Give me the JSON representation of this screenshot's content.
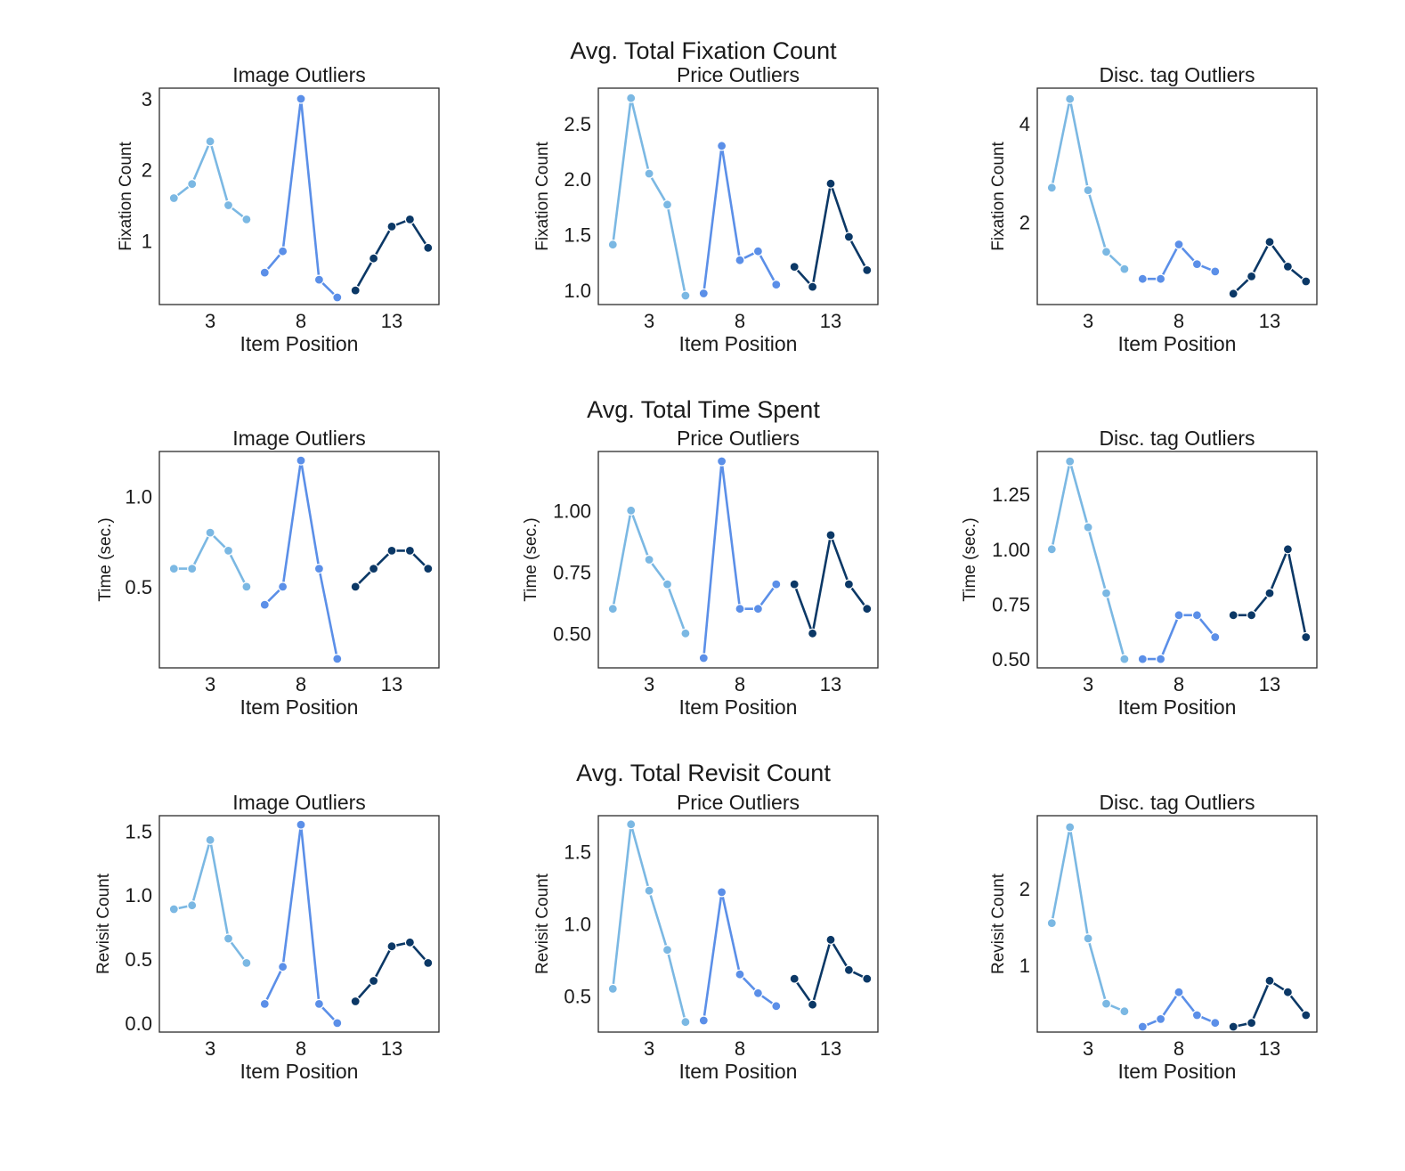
{
  "palette": {
    "segment_1": "#7BB8E3",
    "segment_2": "#5B8FE8",
    "segment_3": "#0B3866",
    "text": "#1a1a1a",
    "frame": "#2b2b2b"
  },
  "chart_data": [
    {
      "row_title": "Avg. Total Fixation Count",
      "panels": [
        {
          "type": "line",
          "title": "Image Outliers",
          "xlabel": "Item Position",
          "ylabel": "Fixation Count",
          "xlim": [
            0.2,
            15.6
          ],
          "ylim": [
            0.1,
            3.15
          ],
          "xticks": [
            3,
            8,
            13
          ],
          "yticks": [
            1,
            2,
            3
          ],
          "series": [
            {
              "name": "segment_1",
              "x": [
                1,
                2,
                3,
                4,
                5
              ],
              "y": [
                1.6,
                1.8,
                2.4,
                1.5,
                1.3
              ]
            },
            {
              "name": "segment_2",
              "x": [
                6,
                7,
                8,
                9,
                10
              ],
              "y": [
                0.55,
                0.85,
                3.0,
                0.45,
                0.2
              ]
            },
            {
              "name": "segment_3",
              "x": [
                11,
                12,
                13,
                14,
                15
              ],
              "y": [
                0.3,
                0.75,
                1.2,
                1.3,
                0.9
              ]
            }
          ]
        },
        {
          "type": "line",
          "title": "Price Outliers",
          "xlabel": "Item Position",
          "ylabel": "Fixation Count",
          "xlim": [
            0.2,
            15.6
          ],
          "ylim": [
            0.87,
            2.82
          ],
          "xticks": [
            3,
            8,
            13
          ],
          "yticks": [
            1.0,
            1.5,
            2.0,
            2.5
          ],
          "ytick_labels": [
            "1.0",
            "1.5",
            "2.0",
            "2.5"
          ],
          "series": [
            {
              "name": "segment_1",
              "x": [
                1,
                2,
                3,
                4,
                5
              ],
              "y": [
                1.41,
                2.73,
                2.05,
                1.77,
                0.95
              ]
            },
            {
              "name": "segment_2",
              "x": [
                6,
                7,
                8,
                9,
                10
              ],
              "y": [
                0.97,
                2.3,
                1.27,
                1.35,
                1.05
              ]
            },
            {
              "name": "segment_3",
              "x": [
                11,
                12,
                13,
                14,
                15
              ],
              "y": [
                1.21,
                1.03,
                1.96,
                1.48,
                1.18
              ]
            }
          ]
        },
        {
          "type": "line",
          "title": "Disc. tag Outliers",
          "xlabel": "Item Position",
          "ylabel": "Fixation Count",
          "xlim": [
            0.2,
            15.6
          ],
          "ylim": [
            0.33,
            4.72
          ],
          "xticks": [
            3,
            8,
            13
          ],
          "yticks": [
            2,
            4
          ],
          "series": [
            {
              "name": "segment_1",
              "x": [
                1,
                2,
                3,
                4,
                5
              ],
              "y": [
                2.7,
                4.5,
                2.65,
                1.4,
                1.05
              ]
            },
            {
              "name": "segment_2",
              "x": [
                6,
                7,
                8,
                9,
                10
              ],
              "y": [
                0.85,
                0.85,
                1.55,
                1.15,
                1.0
              ]
            },
            {
              "name": "segment_3",
              "x": [
                11,
                12,
                13,
                14,
                15
              ],
              "y": [
                0.55,
                0.9,
                1.6,
                1.1,
                0.8
              ]
            }
          ]
        }
      ]
    },
    {
      "row_title": "Avg. Total Time Spent",
      "panels": [
        {
          "type": "line",
          "title": "Image Outliers",
          "xlabel": "Item Position",
          "ylabel": "Time (sec.)",
          "xlim": [
            0.2,
            15.6
          ],
          "ylim": [
            0.05,
            1.25
          ],
          "xticks": [
            3,
            8,
            13
          ],
          "yticks": [
            0.5,
            1.0
          ],
          "ytick_labels": [
            "0.5",
            "1.0"
          ],
          "series": [
            {
              "name": "segment_1",
              "x": [
                1,
                2,
                3,
                4,
                5
              ],
              "y": [
                0.6,
                0.6,
                0.8,
                0.7,
                0.5
              ]
            },
            {
              "name": "segment_2",
              "x": [
                6,
                7,
                8,
                9,
                10
              ],
              "y": [
                0.4,
                0.5,
                1.2,
                0.6,
                0.1
              ]
            },
            {
              "name": "segment_3",
              "x": [
                11,
                12,
                13,
                14,
                15
              ],
              "y": [
                0.5,
                0.6,
                0.7,
                0.7,
                0.6
              ]
            }
          ]
        },
        {
          "type": "line",
          "title": "Price Outliers",
          "xlabel": "Item Position",
          "ylabel": "Time (sec.)",
          "xlim": [
            0.2,
            15.6
          ],
          "ylim": [
            0.36,
            1.24
          ],
          "xticks": [
            3,
            8,
            13
          ],
          "yticks": [
            0.5,
            0.75,
            1.0
          ],
          "ytick_labels": [
            "0.50",
            "0.75",
            "1.00"
          ],
          "series": [
            {
              "name": "segment_1",
              "x": [
                1,
                2,
                3,
                4,
                5
              ],
              "y": [
                0.6,
                1.0,
                0.8,
                0.7,
                0.5
              ]
            },
            {
              "name": "segment_2",
              "x": [
                6,
                7,
                8,
                9,
                10
              ],
              "y": [
                0.4,
                1.2,
                0.6,
                0.6,
                0.7
              ]
            },
            {
              "name": "segment_3",
              "x": [
                11,
                12,
                13,
                14,
                15
              ],
              "y": [
                0.7,
                0.5,
                0.9,
                0.7,
                0.6
              ]
            }
          ]
        },
        {
          "type": "line",
          "title": "Disc. tag Outliers",
          "xlabel": "Item Position",
          "ylabel": "Time (sec.)",
          "xlim": [
            0.2,
            15.6
          ],
          "ylim": [
            0.46,
            1.445
          ],
          "xticks": [
            3,
            8,
            13
          ],
          "yticks": [
            0.5,
            0.75,
            1.0,
            1.25
          ],
          "ytick_labels": [
            "0.50",
            "0.75",
            "1.00",
            "1.25"
          ],
          "series": [
            {
              "name": "segment_1",
              "x": [
                1,
                2,
                3,
                4,
                5
              ],
              "y": [
                1.0,
                1.4,
                1.1,
                0.8,
                0.5
              ]
            },
            {
              "name": "segment_2",
              "x": [
                6,
                7,
                8,
                9,
                10
              ],
              "y": [
                0.5,
                0.5,
                0.7,
                0.7,
                0.6
              ]
            },
            {
              "name": "segment_3",
              "x": [
                11,
                12,
                13,
                14,
                15
              ],
              "y": [
                0.7,
                0.7,
                0.8,
                1.0,
                0.6
              ]
            }
          ]
        }
      ]
    },
    {
      "row_title": "Avg. Total Revisit Count",
      "panels": [
        {
          "type": "line",
          "title": "Image Outliers",
          "xlabel": "Item Position",
          "ylabel": "Revisit Count",
          "xlim": [
            0.2,
            15.6
          ],
          "ylim": [
            -0.07,
            1.62
          ],
          "xticks": [
            3,
            8,
            13
          ],
          "yticks": [
            0.0,
            0.5,
            1.0,
            1.5
          ],
          "ytick_labels": [
            "0.0",
            "0.5",
            "1.0",
            "1.5"
          ],
          "series": [
            {
              "name": "segment_1",
              "x": [
                1,
                2,
                3,
                4,
                5
              ],
              "y": [
                0.89,
                0.92,
                1.43,
                0.66,
                0.47
              ]
            },
            {
              "name": "segment_2",
              "x": [
                6,
                7,
                8,
                9,
                10
              ],
              "y": [
                0.15,
                0.44,
                1.55,
                0.15,
                0.0
              ]
            },
            {
              "name": "segment_3",
              "x": [
                11,
                12,
                13,
                14,
                15
              ],
              "y": [
                0.17,
                0.33,
                0.6,
                0.63,
                0.47
              ]
            }
          ]
        },
        {
          "type": "line",
          "title": "Price Outliers",
          "xlabel": "Item Position",
          "ylabel": "Revisit Count",
          "xlim": [
            0.2,
            15.6
          ],
          "ylim": [
            0.25,
            1.75
          ],
          "xticks": [
            3,
            8,
            13
          ],
          "yticks": [
            0.5,
            1.0,
            1.5
          ],
          "ytick_labels": [
            "0.5",
            "1.0",
            "1.5"
          ],
          "series": [
            {
              "name": "segment_1",
              "x": [
                1,
                2,
                3,
                4,
                5
              ],
              "y": [
                0.55,
                1.69,
                1.23,
                0.82,
                0.32
              ]
            },
            {
              "name": "segment_2",
              "x": [
                6,
                7,
                8,
                9,
                10
              ],
              "y": [
                0.33,
                1.22,
                0.65,
                0.52,
                0.43
              ]
            },
            {
              "name": "segment_3",
              "x": [
                11,
                12,
                13,
                14,
                15
              ],
              "y": [
                0.62,
                0.44,
                0.89,
                0.68,
                0.62
              ]
            }
          ]
        },
        {
          "type": "line",
          "title": "Disc. tag Outliers",
          "xlabel": "Item Position",
          "ylabel": "Revisit Count",
          "xlim": [
            0.2,
            15.6
          ],
          "ylim": [
            0.13,
            2.95
          ],
          "xticks": [
            3,
            8,
            13
          ],
          "yticks": [
            1,
            2
          ],
          "series": [
            {
              "name": "segment_1",
              "x": [
                1,
                2,
                3,
                4,
                5
              ],
              "y": [
                1.55,
                2.8,
                1.35,
                0.5,
                0.4
              ]
            },
            {
              "name": "segment_2",
              "x": [
                6,
                7,
                8,
                9,
                10
              ],
              "y": [
                0.2,
                0.3,
                0.65,
                0.35,
                0.25
              ]
            },
            {
              "name": "segment_3",
              "x": [
                11,
                12,
                13,
                14,
                15
              ],
              "y": [
                0.2,
                0.25,
                0.8,
                0.65,
                0.35
              ]
            }
          ]
        }
      ]
    }
  ]
}
